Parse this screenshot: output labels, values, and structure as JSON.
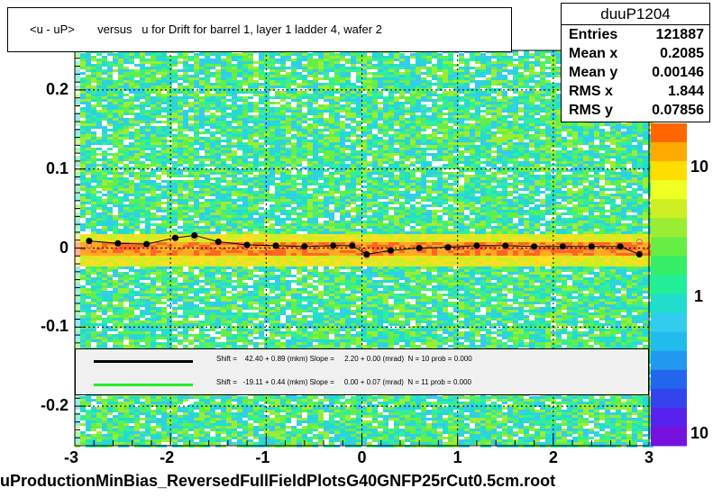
{
  "title": "<u - uP>       versus   u for Drift for barrel 1, layer 1 ladder 4, wafer 2",
  "footer": "uProductionMinBias_ReversedFullFieldPlotsG40GNFP25rCut0.5cm.root",
  "stats": {
    "name": "duuP1204",
    "rows": [
      {
        "label": "Entries",
        "value": "121887"
      },
      {
        "label": "Mean x",
        "value": "0.2085"
      },
      {
        "label": "Mean y",
        "value": "0.00146"
      },
      {
        "label": "RMS x",
        "value": "1.844"
      },
      {
        "label": "RMS y",
        "value": "0.07856"
      }
    ]
  },
  "fits": [
    {
      "color": "#000000",
      "text": "Shift =    42.40 + 0.89 (mkm) Slope =     2.20 + 0.00 (mrad)  N = 10 prob = 0.000"
    },
    {
      "color": "#22ee22",
      "text": "Shift =   -19.11 + 0.44 (mkm) Slope =     0.00 + 0.07 (mrad)  N = 11 prob = 0.000"
    }
  ],
  "chart_data": {
    "type": "heatmap",
    "title": "<u - uP>       versus   u for Drift for barrel 1, layer 1 ladder 4, wafer 2",
    "xlabel": "",
    "ylabel": "",
    "xlim": [
      -3,
      3
    ],
    "ylim": [
      -0.25,
      0.25
    ],
    "x_ticks": [
      "-3",
      "-2",
      "-1",
      "0",
      "1",
      "2",
      "3"
    ],
    "y_ticks": [
      "-0.2",
      "-0.1",
      "0",
      "0.1",
      "0.2"
    ],
    "z_ticks": [
      "10",
      "1",
      "10"
    ],
    "z_scale": "log",
    "grid": true,
    "series": [
      {
        "name": "profile",
        "x": [
          -2.85,
          -2.55,
          -2.25,
          -1.95,
          -1.75,
          -1.5,
          -1.2,
          -0.9,
          -0.6,
          -0.3,
          -0.1,
          0.05,
          0.3,
          0.6,
          0.9,
          1.2,
          1.5,
          1.8,
          2.1,
          2.4,
          2.7,
          2.9
        ],
        "y": [
          0.009,
          0.006,
          0.005,
          0.013,
          0.016,
          0.008,
          0.004,
          0.003,
          0.002,
          0.003,
          0.003,
          -0.008,
          -0.003,
          0.0,
          0.001,
          0.003,
          0.003,
          0.002,
          0.002,
          0.002,
          0.002,
          -0.008
        ]
      },
      {
        "name": "mean",
        "x": [
          -2.85,
          -2.55,
          -2.25,
          -1.95,
          -1.75,
          -1.5,
          -1.2,
          -0.9,
          -0.6,
          -0.3,
          -0.1,
          0.05,
          0.3,
          0.6,
          0.9,
          1.2,
          1.5,
          1.8,
          2.1,
          2.4,
          2.7,
          2.9
        ],
        "y": [
          0.003,
          0.001,
          0.002,
          0.012,
          0.013,
          0.006,
          0.003,
          0.003,
          0.002,
          0.004,
          0.005,
          -0.01,
          -0.004,
          -0.002,
          0.0,
          0.002,
          0.002,
          0.0,
          -0.001,
          -0.001,
          0.003,
          0.008
        ]
      }
    ],
    "colors": {
      "profile": "#000000",
      "mean": "#ff5090"
    }
  }
}
